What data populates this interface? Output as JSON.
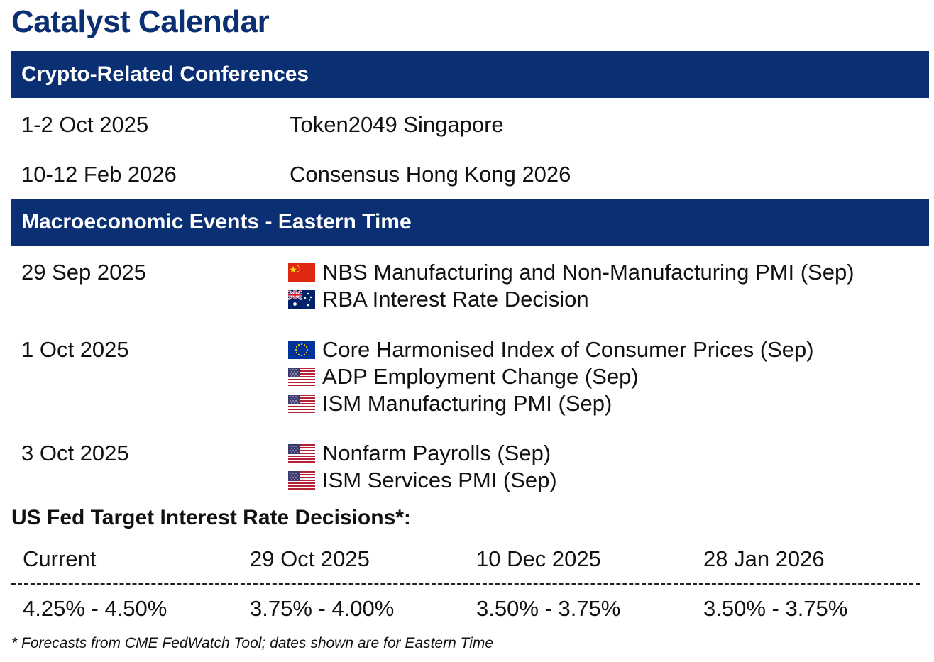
{
  "title": "Catalyst Calendar",
  "sections": {
    "conferences": {
      "heading": "Crypto-Related Conferences",
      "rows": [
        {
          "date": "1-2 Oct 2025",
          "event": "Token2049 Singapore"
        },
        {
          "date": "10-12 Feb 2026",
          "event": "Consensus Hong Kong 2026"
        }
      ]
    },
    "macro": {
      "heading": "Macroeconomic Events - Eastern Time",
      "groups": [
        {
          "date": "29 Sep 2025",
          "events": [
            {
              "flag": "china-flag-icon",
              "label": "NBS Manufacturing and Non-Manufacturing PMI (Sep)"
            },
            {
              "flag": "australia-flag-icon",
              "label": "RBA Interest Rate Decision"
            }
          ]
        },
        {
          "date": "1 Oct 2025",
          "events": [
            {
              "flag": "eu-flag-icon",
              "label": "Core Harmonised Index of Consumer Prices (Sep)"
            },
            {
              "flag": "us-flag-icon",
              "label": "ADP Employment Change (Sep)"
            },
            {
              "flag": "us-flag-icon",
              "label": "ISM Manufacturing PMI (Sep)"
            }
          ]
        },
        {
          "date": "3 Oct 2025",
          "events": [
            {
              "flag": "us-flag-icon",
              "label": "Nonfarm Payrolls (Sep)"
            },
            {
              "flag": "us-flag-icon",
              "label": "ISM Services PMI (Sep)"
            }
          ]
        }
      ]
    }
  },
  "fed": {
    "heading": "US Fed Target Interest Rate Decisions*:",
    "columns": [
      "Current",
      "29 Oct 2025",
      "10 Dec 2025",
      "28 Jan 2026"
    ],
    "values": [
      "4.25% - 4.50%",
      "3.75% - 4.00%",
      "3.50% - 3.75%",
      "3.50% - 3.75%"
    ]
  },
  "footnote": "* Forecasts from CME FedWatch Tool; dates shown are for Eastern Time",
  "colors": {
    "brand_navy": "#0b2f73",
    "text": "#111111",
    "background": "#ffffff"
  }
}
